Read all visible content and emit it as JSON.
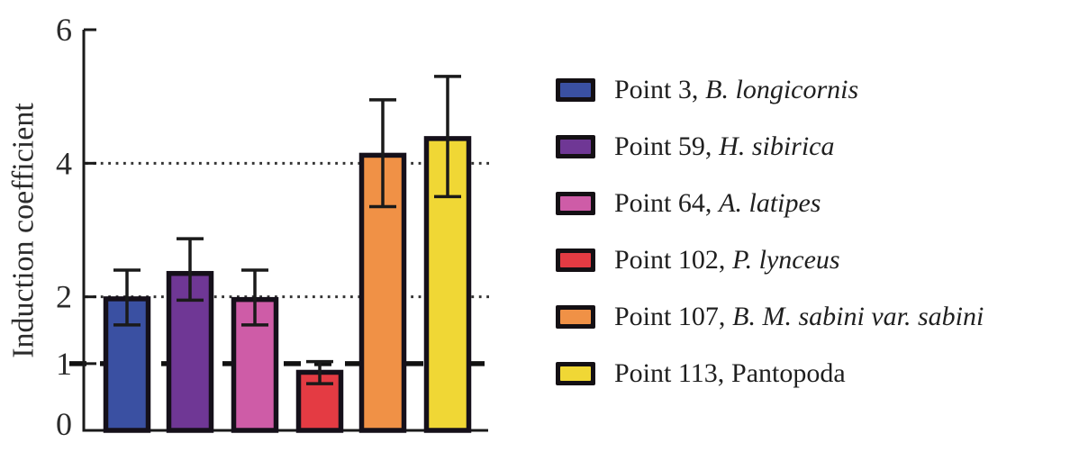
{
  "figure": {
    "background": "#ffffff"
  },
  "colors": {
    "axis": "#1a1a1a",
    "tick_text": "#2b2b2b",
    "bar_border": "#15101a",
    "error_bar": "#1a1a1a",
    "dotted_grid": "#333333",
    "dashed_grid": "#111111"
  },
  "chart_data": {
    "type": "bar",
    "title": "",
    "xlabel": "",
    "ylabel": "Induction coefficient",
    "ylim": [
      0,
      6
    ],
    "yticks": [
      0,
      1,
      2,
      4,
      6
    ],
    "grid": "horizontal-only",
    "gridlines": [
      {
        "y": 1,
        "style": "dashed"
      },
      {
        "y": 2,
        "style": "dotted"
      },
      {
        "y": 4,
        "style": "dotted"
      }
    ],
    "categories": [
      "Point 3, B. longicornis",
      "Point 59, H. sibirica",
      "Point 64, A. latipes",
      "Point 102, P. lynceus",
      "Point 107, B. M. sabini var. sabini",
      "Point 113, Pantopoda"
    ],
    "bars": [
      {
        "label": "Point 3, B. longicornis",
        "value": 1.97,
        "whisker_low": 1.58,
        "whisker_high": 2.4,
        "color": "#3A50A2"
      },
      {
        "label": "Point 59, H. sibirica",
        "value": 2.35,
        "whisker_low": 1.95,
        "whisker_high": 2.87,
        "color": "#6F3795"
      },
      {
        "label": "Point 64, A. latipes",
        "value": 1.96,
        "whisker_low": 1.58,
        "whisker_high": 2.4,
        "color": "#CE5CA7"
      },
      {
        "label": "Point 102, P. lynceus",
        "value": 0.87,
        "whisker_low": 0.7,
        "whisker_high": 1.03,
        "color": "#E43B43"
      },
      {
        "label": "Point 107, B. M. sabini var. sabini",
        "value": 4.12,
        "whisker_low": 3.35,
        "whisker_high": 4.95,
        "color": "#F09146"
      },
      {
        "label": "Point 113, Pantopoda",
        "value": 4.37,
        "whisker_low": 3.5,
        "whisker_high": 5.3,
        "color": "#F0D735"
      }
    ],
    "legend_position": "right"
  },
  "legend": {
    "items": [
      {
        "prefix": "Point 3,",
        "species": "B. longicornis",
        "italic": true,
        "color": "#3A50A2"
      },
      {
        "prefix": "Point 59,",
        "species": "H. sibirica",
        "italic": true,
        "color": "#6F3795"
      },
      {
        "prefix": "Point 64,",
        "species": "A. latipes",
        "italic": true,
        "color": "#CE5CA7"
      },
      {
        "prefix": "Point 102,",
        "species": "P. lynceus",
        "italic": true,
        "color": "#E43B43"
      },
      {
        "prefix": "Point 107,",
        "species": "B. M. sabini var. sabini",
        "italic": true,
        "color": "#F09146"
      },
      {
        "prefix": "Point 113,",
        "species": "Pantopoda",
        "italic": false,
        "color": "#F0D735"
      }
    ]
  }
}
